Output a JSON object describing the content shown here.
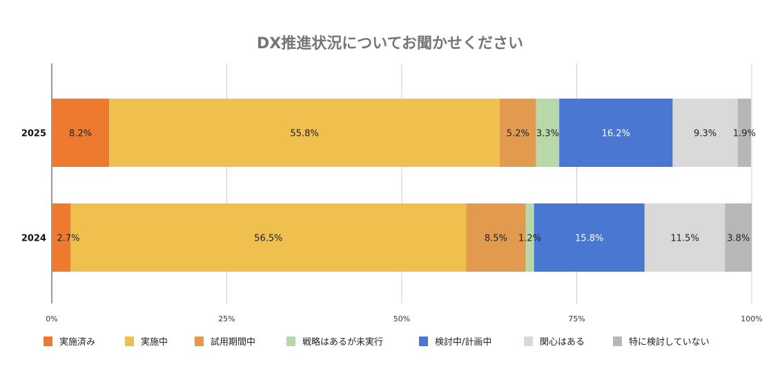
{
  "chart_data": {
    "type": "bar",
    "orientation": "horizontal",
    "stacked": "percent",
    "title": "DX推進状況についてお聞かせください",
    "xlabel": "",
    "ylabel": "",
    "xlim": [
      0,
      100
    ],
    "x_ticks": [
      "0%",
      "25%",
      "50%",
      "75%",
      "100%"
    ],
    "grid": true,
    "legend_position": "bottom",
    "categories": [
      "2025",
      "2024"
    ],
    "series": [
      {
        "name": "実施済み",
        "color": "#EE7A30",
        "label_color": "#222222",
        "values": [
          8.2,
          2.7
        ],
        "labels": [
          "8.2%",
          "2.7%"
        ]
      },
      {
        "name": "実施中",
        "color": "#F0C04F",
        "label_color": "#222222",
        "values": [
          55.8,
          56.5
        ],
        "labels": [
          "55.8%",
          "56.5%"
        ]
      },
      {
        "name": "試用期間中",
        "color": "#E29A4E",
        "label_color": "#222222",
        "values": [
          5.2,
          8.5
        ],
        "labels": [
          "5.2%",
          "8.5%"
        ]
      },
      {
        "name": "戦略はあるが未実行",
        "color": "#B9D8A9",
        "label_color": "#222222",
        "values": [
          3.3,
          1.2
        ],
        "labels": [
          "3.3%",
          "1.2%"
        ]
      },
      {
        "name": "検討中/計画中",
        "color": "#4A77D2",
        "label_color": "#FFFFFF",
        "values": [
          16.2,
          15.8
        ],
        "labels": [
          "16.2%",
          "15.8%"
        ]
      },
      {
        "name": "関心はある",
        "color": "#D9D9D9",
        "label_color": "#222222",
        "values": [
          9.3,
          11.5
        ],
        "labels": [
          "9.3%",
          "11.5%"
        ]
      },
      {
        "name": "特に検討していない",
        "color": "#B7B7B7",
        "label_color": "#222222",
        "values": [
          1.9,
          3.8
        ],
        "labels": [
          "1.9%",
          "3.8%"
        ]
      }
    ]
  }
}
